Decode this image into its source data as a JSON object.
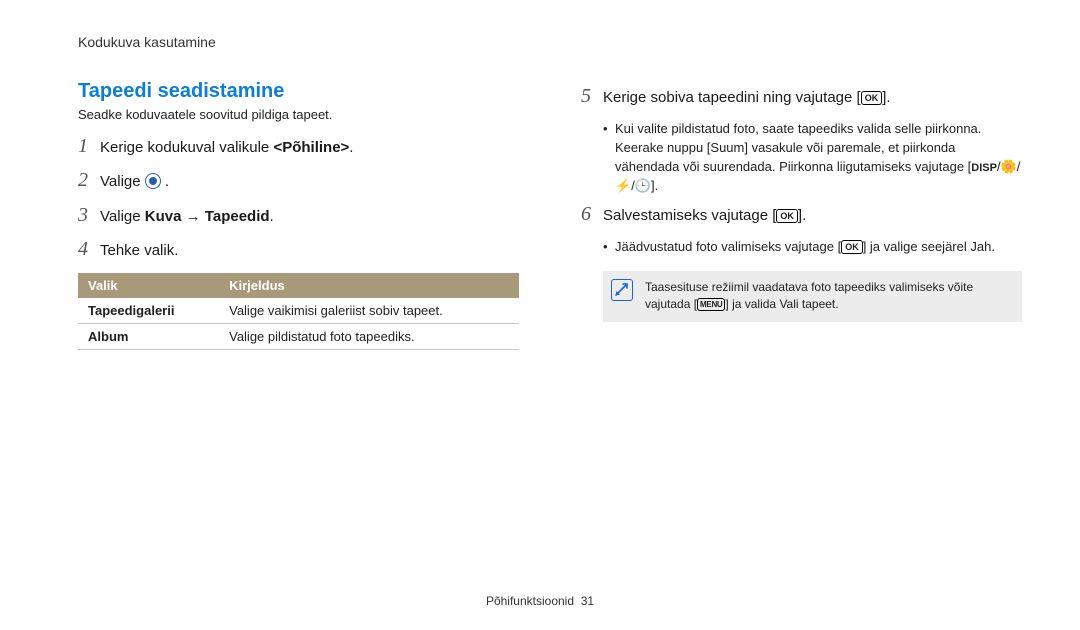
{
  "header": "Kodukuva kasutamine",
  "section": {
    "title": "Tapeedi seadistamine",
    "subtitle": "Seadke koduvaatele soovitud pildiga tapeet."
  },
  "left_steps": [
    {
      "num": "1",
      "html": "Kerige kodukuval valikule <span class='s-bold'>&lt;Põhiline&gt;</span>."
    },
    {
      "num": "2",
      "html": "Valige <span class='icon-circ' data-name='target-icon'></span> ."
    },
    {
      "num": "3",
      "html": "Valige <span class='s-bold'>Kuva</span> → <span class='s-bold'>Tapeedid</span>."
    },
    {
      "num": "4",
      "html": "Tehke valik."
    }
  ],
  "table": {
    "headers": [
      "Valik",
      "Kirjeldus"
    ],
    "rows": [
      [
        "Tapeedigalerii",
        "Valige vaikimisi galeriist sobiv tapeet."
      ],
      [
        "Album",
        "Valige pildistatud foto tapeediks."
      ]
    ],
    "col_widths": [
      "32%",
      "68%"
    ],
    "header_bg": "#a8997a",
    "header_fg": "#ffffff",
    "row_border": "#c7c7c7"
  },
  "right_steps": [
    {
      "num": "5",
      "html": "Kerige sobiva tapeedini ning vajutage [<span class='icon-btn' data-name='ok-icon'>OK</span>].",
      "bullets": [
        "Kui valite pildistatud foto, saate tapeediks valida selle piirkonna. Keerake nuppu [<span class='s-bold'>Suum</span>] vasakule või paremale, et piirkonda vähendada või suurendada. Piirkonna liigutamiseks vajutage [<span class='icon-disp' data-name='disp-icon'>DISP</span>/<span data-name='macro-icon'>&#x1F33C;</span>/<span data-name='flash-icon'>&#x26A1;</span>/<span data-name='timer-icon'>&#x1F552;</span>]."
      ]
    },
    {
      "num": "6",
      "html": "Salvestamiseks vajutage [<span class='icon-btn' data-name='ok-icon'>OK</span>].",
      "bullets": [
        "Jäädvustatud foto valimiseks vajutage [<span class='icon-btn' data-name='ok-icon'>OK</span>] ja valige seejärel <span class='s-bold'>Jah</span>."
      ]
    }
  ],
  "note": {
    "text_html": "Taasesituse režiimil vaadatava foto tapeediks valimiseks võite vajutada [<span class='icon-menu' data-name='menu-icon'>MENU</span>] ja valida <span class='s-bold'>Vali tapeet</span>."
  },
  "footer": {
    "label": "Põhifunktsioonid",
    "page": "31"
  },
  "colors": {
    "title": "#0d7fd1",
    "note_bg": "#ececec",
    "note_icon": "#1b66c9"
  }
}
